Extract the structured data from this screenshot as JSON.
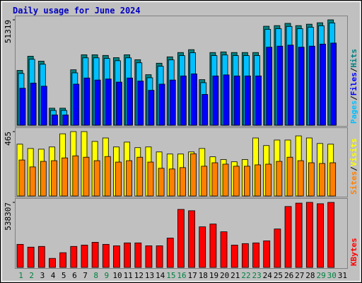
{
  "title": "Daily usage for June 2024",
  "categories": [
    "1",
    "2",
    "3",
    "4",
    "5",
    "6",
    "7",
    "8",
    "9",
    "10",
    "11",
    "12",
    "13",
    "14",
    "15",
    "16",
    "17",
    "18",
    "19",
    "20",
    "21",
    "22",
    "23",
    "24",
    "25",
    "26",
    "27",
    "28",
    "29",
    "30",
    "31"
  ],
  "category_colors": [
    "#008040",
    "#008040",
    "#000000",
    "#000000",
    "#000000",
    "#000000",
    "#000000",
    "#008040",
    "#008040",
    "#000000",
    "#000000",
    "#000000",
    "#000000",
    "#000000",
    "#008040",
    "#008040",
    "#000000",
    "#000000",
    "#000000",
    "#000000",
    "#000000",
    "#008040",
    "#008040",
    "#000000",
    "#000000",
    "#000000",
    "#000000",
    "#000000",
    "#008040",
    "#008040",
    "#000000"
  ],
  "separator": "/",
  "chart_data": [
    {
      "type": "bar",
      "ylim": [
        0,
        51319
      ],
      "yticks": [
        51319
      ],
      "series": [
        {
          "name": "Pages",
          "color": "#00c0ff",
          "values": [
            25200,
            32100,
            29700,
            7200,
            7200,
            25500,
            32800,
            32800,
            32500,
            31400,
            32800,
            30400,
            23100,
            28700,
            31800,
            33900,
            35300,
            20700,
            33900,
            34200,
            33900,
            33900,
            33900,
            46700,
            47000,
            48100,
            47000,
            47700,
            48400,
            49800,
            null
          ]
        },
        {
          "name": "Files",
          "color": "#0000ff",
          "values": [
            18000,
            20500,
            19000,
            5000,
            5000,
            20000,
            23000,
            22000,
            22500,
            21000,
            23000,
            21500,
            17000,
            20000,
            22000,
            24000,
            25000,
            15000,
            24000,
            24500,
            24000,
            24000,
            24000,
            38000,
            38500,
            39000,
            38000,
            38500,
            39500,
            40000,
            null
          ]
        },
        {
          "name": "Hits",
          "color": "#008080",
          "values": [
            26700,
            33600,
            31200,
            8300,
            8300,
            27000,
            34300,
            34300,
            34000,
            32900,
            34300,
            31900,
            24600,
            30200,
            33300,
            35400,
            36800,
            22200,
            35400,
            35700,
            35400,
            35400,
            35400,
            48200,
            48500,
            49600,
            48500,
            49200,
            49900,
            51319,
            null
          ]
        }
      ],
      "draw_order": [
        2,
        0,
        1
      ]
    },
    {
      "type": "bar",
      "ylim": [
        0,
        465
      ],
      "yticks": [
        465
      ],
      "series": [
        {
          "name": "Sites",
          "color": "#ff8000",
          "values": [
            260,
            210,
            250,
            255,
            275,
            290,
            280,
            255,
            285,
            245,
            255,
            280,
            245,
            200,
            195,
            205,
            305,
            215,
            240,
            230,
            215,
            215,
            225,
            230,
            250,
            280,
            255,
            240,
            235,
            240,
            null
          ]
        },
        {
          "name": "Visits",
          "color": "#ffff00",
          "values": [
            374,
            343,
            338,
            354,
            449,
            465,
            465,
            394,
            419,
            354,
            389,
            349,
            354,
            318,
            303,
            303,
            318,
            343,
            283,
            263,
            247,
            263,
            419,
            364,
            404,
            404,
            434,
            419,
            379,
            374,
            null
          ]
        }
      ],
      "draw_order": [
        1,
        0
      ]
    },
    {
      "type": "bar",
      "ylim": [
        0,
        538307
      ],
      "yticks": [
        538307
      ],
      "series": [
        {
          "name": "KBytes",
          "color": "#ff0000",
          "values": [
            191000,
            168000,
            174000,
            75000,
            122000,
            174000,
            185000,
            208000,
            191000,
            179000,
            203000,
            203000,
            179000,
            179000,
            243000,
            480000,
            469000,
            336000,
            359000,
            295000,
            185000,
            197000,
            203000,
            220000,
            318000,
            504000,
            532000,
            538307,
            527000,
            538000,
            null
          ]
        }
      ],
      "draw_order": [
        0
      ]
    }
  ]
}
